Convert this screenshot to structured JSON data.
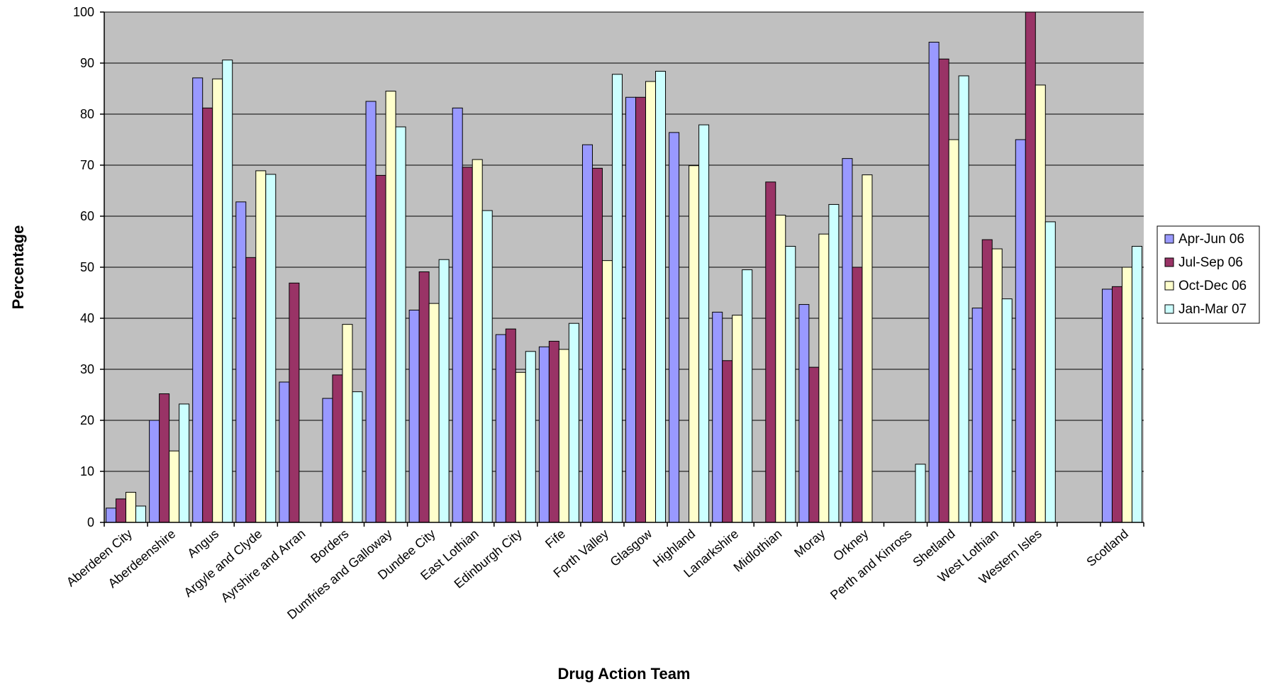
{
  "chart_data": {
    "type": "bar",
    "title": "",
    "xlabel": "Drug Action Team",
    "ylabel": "Percentage",
    "ylim": [
      0,
      100
    ],
    "yticks": [
      0,
      10,
      20,
      30,
      40,
      50,
      60,
      70,
      80,
      90,
      100
    ],
    "grid": true,
    "legend_position": "right",
    "categories": [
      "Aberdeen City",
      "Aberdeenshire",
      "Angus",
      "Argyle and Clyde",
      "Ayrshire and Arran",
      "Borders",
      "Dumfries and Galloway",
      "Dundee City",
      "East Lothian",
      "Edinburgh City",
      "Fife",
      "Forth Valley",
      "Glasgow",
      "Highland",
      "Lanarkshire",
      "Midlothian",
      "Moray",
      "Orkney",
      "Perth and Kinross",
      "Shetland",
      "West Lothian",
      "Western Isles",
      "",
      "Scotland"
    ],
    "series": [
      {
        "name": "Apr-Jun 06",
        "color": "#9999ff",
        "values": [
          2.8,
          20.0,
          87.1,
          62.8,
          27.5,
          24.3,
          82.5,
          41.6,
          81.2,
          36.8,
          34.4,
          74.0,
          83.3,
          76.4,
          41.2,
          null,
          42.7,
          71.3,
          null,
          94.1,
          42.0,
          75.0,
          null,
          45.7
        ]
      },
      {
        "name": "Jul-Sep 06",
        "color": "#993366",
        "values": [
          4.6,
          25.2,
          81.2,
          51.9,
          46.9,
          28.9,
          68.0,
          49.1,
          69.6,
          37.9,
          35.5,
          69.4,
          83.3,
          null,
          31.7,
          66.7,
          30.4,
          50.0,
          null,
          90.8,
          55.4,
          100.0,
          null,
          46.2
        ]
      },
      {
        "name": "Oct-Dec 06",
        "color": "#ffffcc",
        "values": [
          5.9,
          14.0,
          86.9,
          68.9,
          null,
          38.8,
          84.5,
          42.9,
          71.1,
          29.4,
          33.9,
          51.3,
          86.4,
          69.9,
          40.6,
          60.2,
          56.5,
          68.1,
          null,
          75.0,
          53.6,
          85.7,
          null,
          50.0
        ]
      },
      {
        "name": "Jan-Mar 07",
        "color": "#ccffff",
        "values": [
          3.2,
          23.2,
          90.6,
          68.2,
          null,
          25.6,
          77.5,
          51.5,
          61.1,
          33.5,
          39.0,
          87.8,
          88.4,
          77.9,
          49.5,
          54.1,
          62.3,
          null,
          11.4,
          87.5,
          43.8,
          58.9,
          null,
          54.1
        ]
      }
    ]
  }
}
